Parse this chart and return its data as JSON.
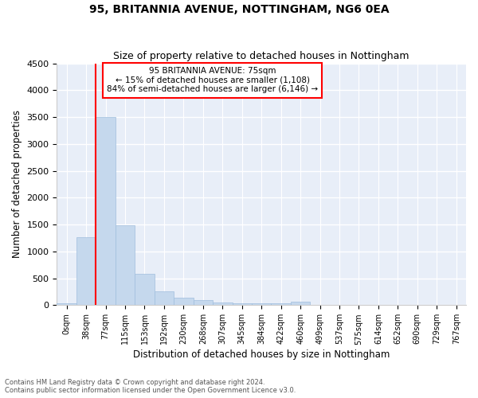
{
  "title": "95, BRITANNIA AVENUE, NOTTINGHAM, NG6 0EA",
  "subtitle": "Size of property relative to detached houses in Nottingham",
  "xlabel": "Distribution of detached houses by size in Nottingham",
  "ylabel": "Number of detached properties",
  "bar_color": "#c5d8ed",
  "bar_edge_color": "#a0bedd",
  "fig_bg_color": "#ffffff",
  "plot_bg_color": "#e8eef8",
  "grid_color": "#ffffff",
  "spine_color": "#cccccc",
  "categories": [
    "0sqm",
    "38sqm",
    "77sqm",
    "115sqm",
    "153sqm",
    "192sqm",
    "230sqm",
    "268sqm",
    "307sqm",
    "345sqm",
    "384sqm",
    "422sqm",
    "460sqm",
    "499sqm",
    "537sqm",
    "575sqm",
    "614sqm",
    "652sqm",
    "690sqm",
    "729sqm",
    "767sqm"
  ],
  "values": [
    30,
    1270,
    3500,
    1480,
    590,
    250,
    145,
    90,
    50,
    30,
    30,
    35,
    60,
    0,
    0,
    0,
    0,
    0,
    0,
    0,
    0
  ],
  "ylim": [
    0,
    4500
  ],
  "yticks": [
    0,
    500,
    1000,
    1500,
    2000,
    2500,
    3000,
    3500,
    4000,
    4500
  ],
  "property_line_x": 1.5,
  "property_line_label": "95 BRITANNIA AVENUE: 75sqm",
  "annotation_line1": "← 15% of detached houses are smaller (1,108)",
  "annotation_line2": "84% of semi-detached houses are larger (6,146) →",
  "footnote1": "Contains HM Land Registry data © Crown copyright and database right 2024.",
  "footnote2": "Contains public sector information licensed under the Open Government Licence v3.0.",
  "figsize": [
    6.0,
    5.0
  ],
  "dpi": 100
}
